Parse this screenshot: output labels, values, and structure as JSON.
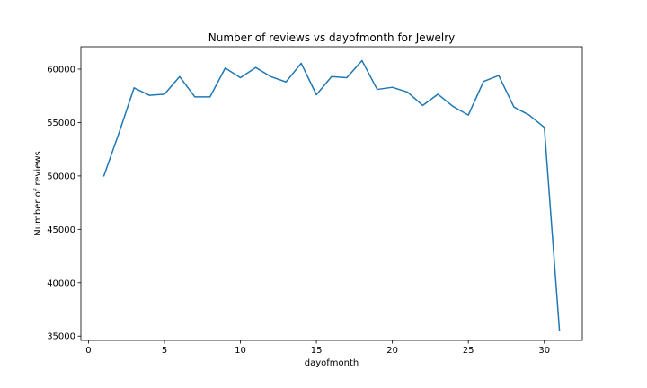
{
  "chart_data": {
    "type": "line",
    "title": "Number of reviews vs dayofmonth for Jewelry",
    "xlabel": "dayofmonth",
    "ylabel": "Number of reviews",
    "xlim": [
      -0.5,
      32.5
    ],
    "ylim": [
      34600,
      62100
    ],
    "xticks": [
      0,
      5,
      10,
      15,
      20,
      25,
      30
    ],
    "yticks": [
      35000,
      40000,
      45000,
      50000,
      55000,
      60000
    ],
    "grid": false,
    "legend": "none",
    "color": "#1f77b4",
    "series": [
      {
        "x": [
          1,
          2,
          3,
          4,
          5,
          6,
          7,
          8,
          9,
          10,
          11,
          12,
          13,
          14,
          15,
          16,
          17,
          18,
          19,
          20,
          21,
          22,
          23,
          24,
          25,
          26,
          27,
          28,
          29,
          30,
          31
        ],
        "values": [
          49950,
          54000,
          58250,
          57550,
          57650,
          59300,
          57400,
          57400,
          60100,
          59200,
          60150,
          59300,
          58800,
          60550,
          57600,
          59300,
          59200,
          60800,
          58100,
          58300,
          57850,
          56600,
          57650,
          56500,
          55700,
          58850,
          59400,
          56450,
          55700,
          54550,
          35450
        ]
      }
    ]
  }
}
